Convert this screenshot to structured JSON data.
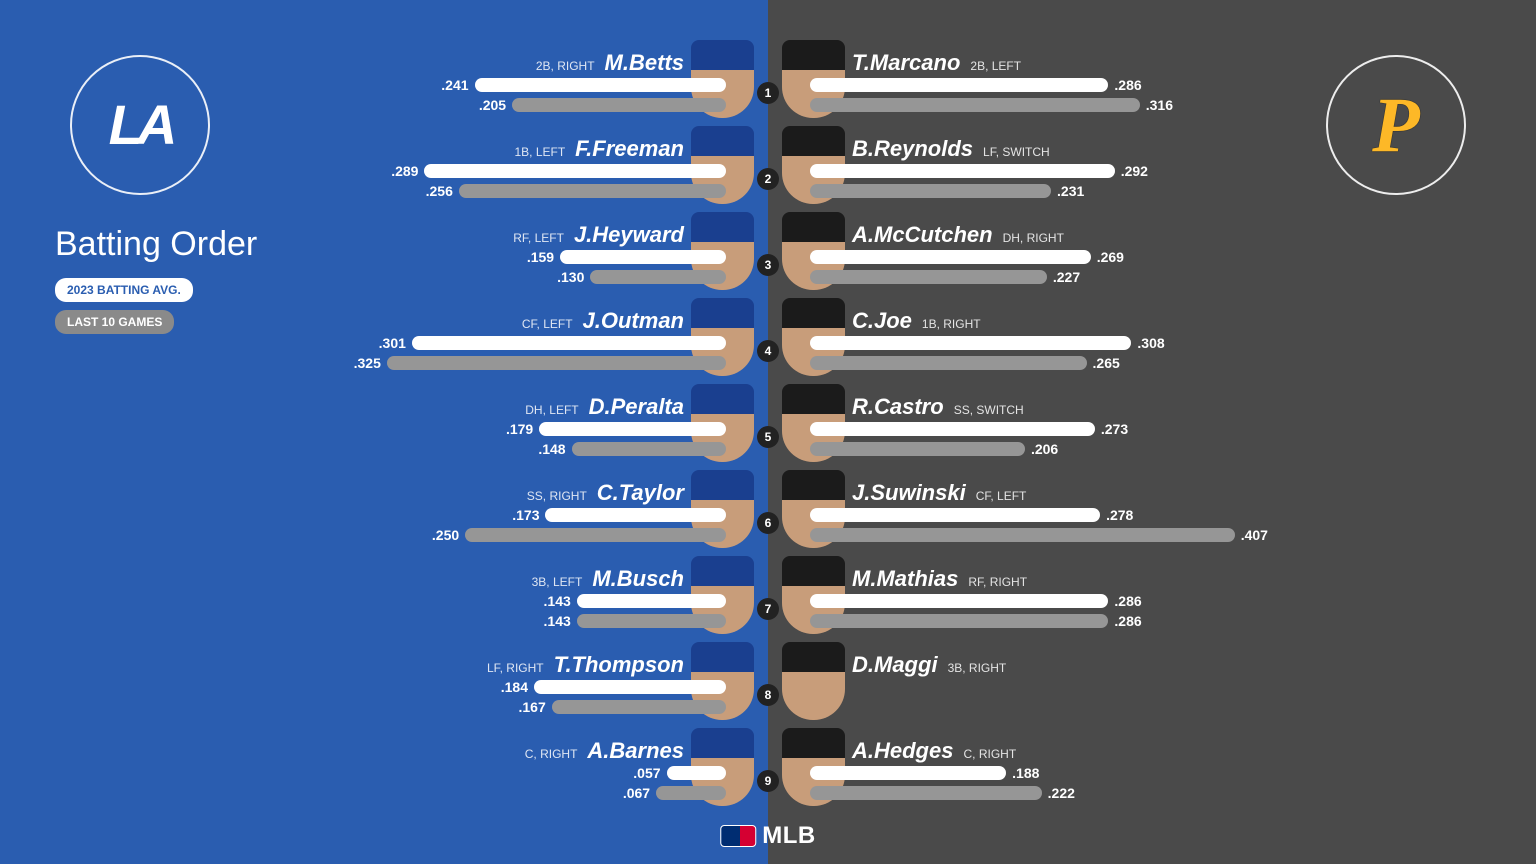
{
  "infographic": {
    "title": "Batting Order",
    "legend_primary": "2023 BATTING AVG.",
    "legend_secondary": "LAST 10 GAMES",
    "footer": "MLB",
    "bar_scale_max": 0.345,
    "colors": {
      "left_bg": "#2a5db0",
      "right_bg": "#4a4a4a",
      "bar_primary": "#ffffff",
      "bar_secondary": "#969696",
      "order_disc_bg": "#222222",
      "text": "#ffffff",
      "pirates_gold": "#fdb827"
    }
  },
  "teams": {
    "left": {
      "abbr": "LA",
      "name": "Los Angeles Dodgers",
      "cap_color": "#1a3f8f",
      "face_color": "#c89d7a"
    },
    "right": {
      "abbr": "P",
      "name": "Pittsburgh Pirates",
      "cap_color": "#1b1b1b",
      "face_color": "#c89d7a"
    }
  },
  "left_lineup": [
    {
      "name": "M.Betts",
      "pos": "2B, RIGHT",
      "avg": ".241",
      "last10": ".205",
      "avg_n": 0.241,
      "last10_n": 0.205
    },
    {
      "name": "F.Freeman",
      "pos": "1B, LEFT",
      "avg": ".289",
      "last10": ".256",
      "avg_n": 0.289,
      "last10_n": 0.256
    },
    {
      "name": "J.Heyward",
      "pos": "RF, LEFT",
      "avg": ".159",
      "last10": ".130",
      "avg_n": 0.159,
      "last10_n": 0.13
    },
    {
      "name": "J.Outman",
      "pos": "CF, LEFT",
      "avg": ".301",
      "last10": ".325",
      "avg_n": 0.301,
      "last10_n": 0.325
    },
    {
      "name": "D.Peralta",
      "pos": "DH, LEFT",
      "avg": ".179",
      "last10": ".148",
      "avg_n": 0.179,
      "last10_n": 0.148
    },
    {
      "name": "C.Taylor",
      "pos": "SS, RIGHT",
      "avg": ".173",
      "last10": ".250",
      "avg_n": 0.173,
      "last10_n": 0.25
    },
    {
      "name": "M.Busch",
      "pos": "3B, LEFT",
      "avg": ".143",
      "last10": ".143",
      "avg_n": 0.143,
      "last10_n": 0.143
    },
    {
      "name": "T.Thompson",
      "pos": "LF, RIGHT",
      "avg": ".184",
      "last10": ".167",
      "avg_n": 0.184,
      "last10_n": 0.167
    },
    {
      "name": "A.Barnes",
      "pos": "C, RIGHT",
      "avg": ".057",
      "last10": ".067",
      "avg_n": 0.057,
      "last10_n": 0.067
    }
  ],
  "right_lineup": [
    {
      "name": "T.Marcano",
      "pos": "2B, LEFT",
      "avg": ".286",
      "last10": ".316",
      "avg_n": 0.286,
      "last10_n": 0.316
    },
    {
      "name": "B.Reynolds",
      "pos": "LF, SWITCH",
      "avg": ".292",
      "last10": ".231",
      "avg_n": 0.292,
      "last10_n": 0.231
    },
    {
      "name": "A.McCutchen",
      "pos": "DH, RIGHT",
      "avg": ".269",
      "last10": ".227",
      "avg_n": 0.269,
      "last10_n": 0.227
    },
    {
      "name": "C.Joe",
      "pos": "1B, RIGHT",
      "avg": ".308",
      "last10": ".265",
      "avg_n": 0.308,
      "last10_n": 0.265
    },
    {
      "name": "R.Castro",
      "pos": "SS, SWITCH",
      "avg": ".273",
      "last10": ".206",
      "avg_n": 0.273,
      "last10_n": 0.206
    },
    {
      "name": "J.Suwinski",
      "pos": "CF, LEFT",
      "avg": ".278",
      "last10": ".407",
      "avg_n": 0.278,
      "last10_n": 0.407
    },
    {
      "name": "M.Mathias",
      "pos": "RF, RIGHT",
      "avg": ".286",
      "last10": ".286",
      "avg_n": 0.286,
      "last10_n": 0.286
    },
    {
      "name": "D.Maggi",
      "pos": "3B, RIGHT",
      "avg": "",
      "last10": "",
      "avg_n": 0,
      "last10_n": 0
    },
    {
      "name": "A.Hedges",
      "pos": "C, RIGHT",
      "avg": ".188",
      "last10": ".222",
      "avg_n": 0.188,
      "last10_n": 0.222
    }
  ]
}
